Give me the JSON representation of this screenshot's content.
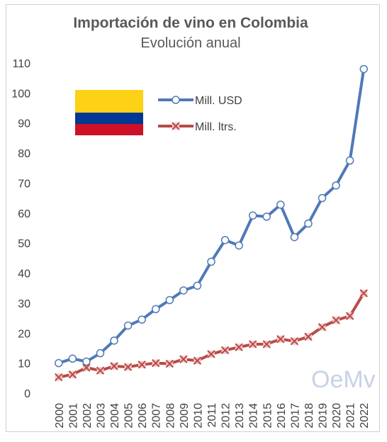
{
  "chart_data": {
    "type": "line",
    "title": "Importación de vino en Colombia",
    "subtitle": "Evolución anual",
    "x": [
      "2000",
      "2001",
      "2002",
      "2003",
      "2004",
      "2005",
      "2006",
      "2007",
      "2008",
      "2009",
      "2010",
      "2011",
      "2012",
      "2013",
      "2014",
      "2015",
      "2016",
      "2017",
      "2018",
      "2019",
      "2020",
      "2021",
      "2022"
    ],
    "series": [
      {
        "name": "Mill. USD",
        "color": "#4f79b8",
        "marker": "circle",
        "values": [
          10,
          11.5,
          10.5,
          13.3,
          17.5,
          22.5,
          24.5,
          28,
          31,
          34.2,
          35.8,
          43.8,
          51,
          49.2,
          59.2,
          58.8,
          62.8,
          52,
          56.5,
          65,
          69.2,
          77.5,
          108
        ]
      },
      {
        "name": "Mill. ltrs.",
        "color": "#b94a48",
        "marker": "x",
        "values": [
          5.3,
          6.2,
          8.5,
          7.5,
          9,
          8.7,
          9.5,
          10,
          9.8,
          11.3,
          10.8,
          13,
          14.3,
          15.3,
          16.3,
          16.3,
          18,
          17.3,
          18.8,
          22,
          24.3,
          25.7,
          33.3
        ]
      }
    ],
    "yticks": [
      "0",
      "10",
      "20",
      "30",
      "40",
      "50",
      "60",
      "70",
      "80",
      "90",
      "100",
      "110"
    ],
    "ylim": [
      0,
      110
    ],
    "grid": false,
    "legend_position": "top-center"
  },
  "flag": {
    "colors": [
      "#fcd116",
      "#003893",
      "#ce1126"
    ]
  },
  "logo": {
    "text": "OeMv"
  }
}
